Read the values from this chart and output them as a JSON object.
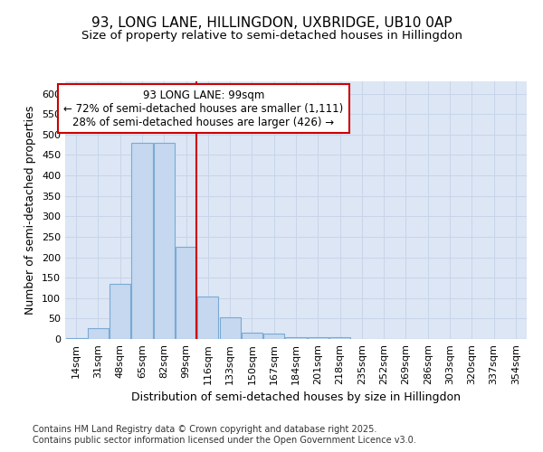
{
  "title_line1": "93, LONG LANE, HILLINGDON, UXBRIDGE, UB10 0AP",
  "title_line2": "Size of property relative to semi-detached houses in Hillingdon",
  "xlabel": "Distribution of semi-detached houses by size in Hillingdon",
  "ylabel": "Number of semi-detached properties",
  "categories": [
    "14sqm",
    "31sqm",
    "48sqm",
    "65sqm",
    "82sqm",
    "99sqm",
    "116sqm",
    "133sqm",
    "150sqm",
    "167sqm",
    "184sqm",
    "201sqm",
    "218sqm",
    "235sqm",
    "252sqm",
    "269sqm",
    "286sqm",
    "303sqm",
    "320sqm",
    "337sqm",
    "354sqm"
  ],
  "values": [
    3,
    27,
    135,
    480,
    480,
    225,
    105,
    52,
    15,
    13,
    5,
    5,
    5,
    0,
    0,
    0,
    0,
    0,
    0,
    0,
    0
  ],
  "bar_color": "#c5d8f0",
  "bar_edge_color": "#7aaad4",
  "highlight_index": 5,
  "highlight_line_color": "#cc0000",
  "annotation_text": "93 LONG LANE: 99sqm\n← 72% of semi-detached houses are smaller (1,111)\n28% of semi-detached houses are larger (426) →",
  "annotation_box_color": "#ffffff",
  "annotation_box_edge_color": "#cc0000",
  "ylim": [
    0,
    630
  ],
  "yticks": [
    0,
    50,
    100,
    150,
    200,
    250,
    300,
    350,
    400,
    450,
    500,
    550,
    600
  ],
  "grid_color": "#c8d4e8",
  "axes_bg_color": "#dce6f5",
  "fig_bg_color": "#ffffff",
  "footer_text": "Contains HM Land Registry data © Crown copyright and database right 2025.\nContains public sector information licensed under the Open Government Licence v3.0.",
  "title_fontsize": 11,
  "subtitle_fontsize": 9.5,
  "axis_label_fontsize": 9,
  "tick_fontsize": 8,
  "footer_fontsize": 7,
  "annotation_fontsize": 8.5
}
